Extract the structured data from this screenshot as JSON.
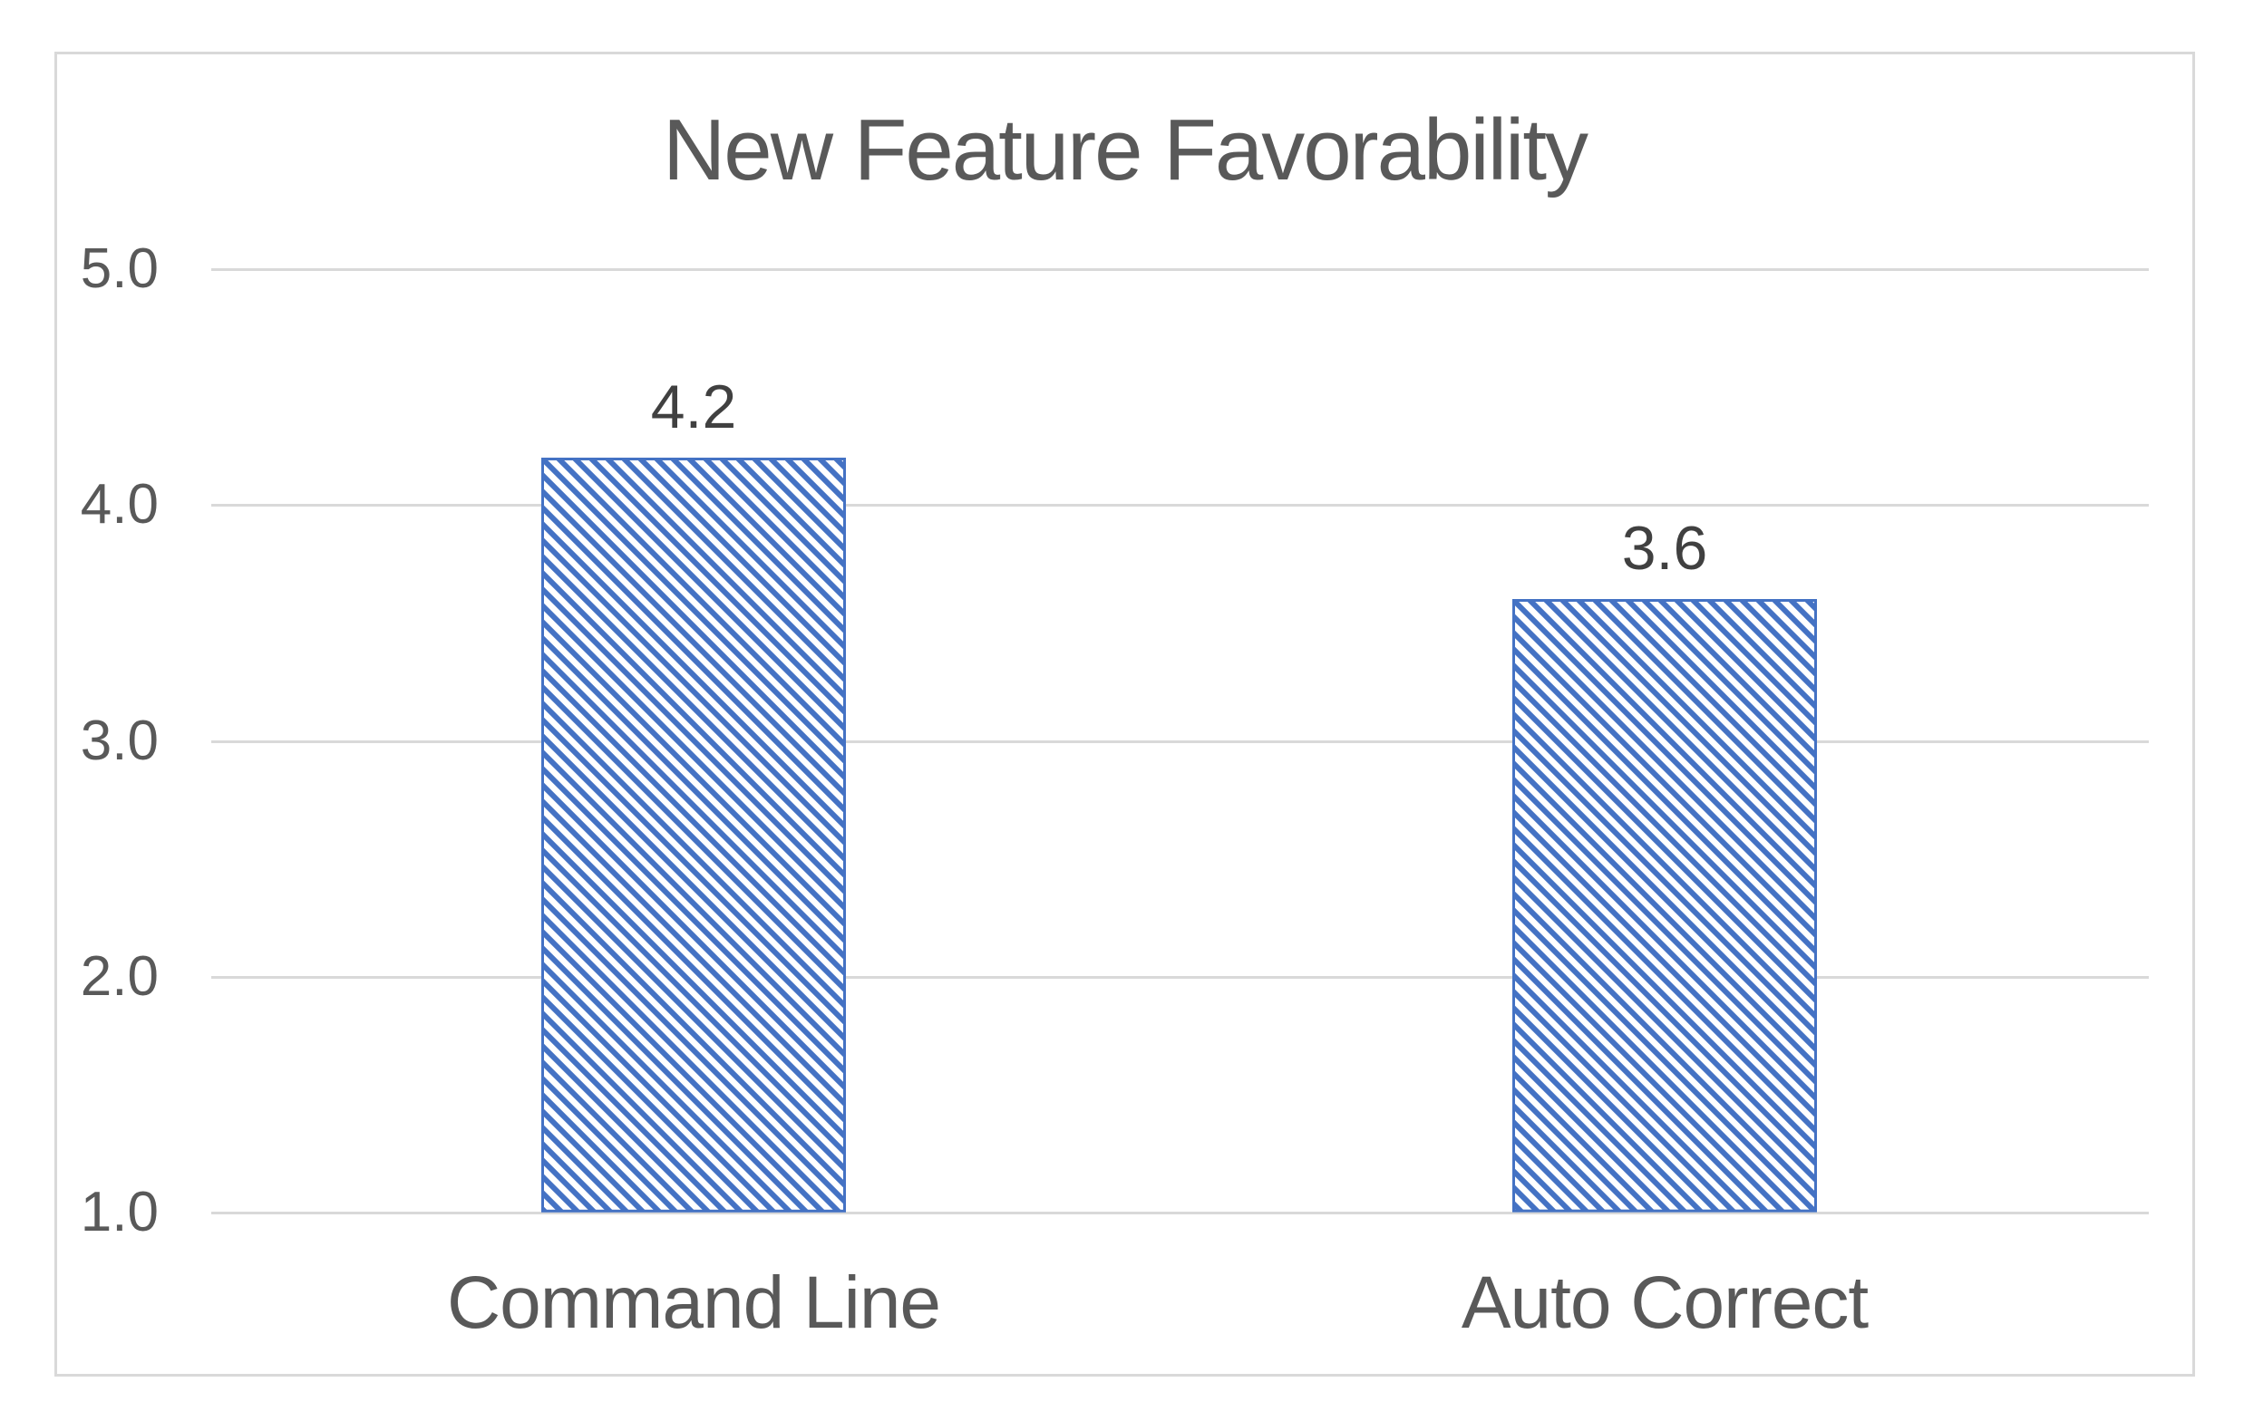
{
  "chart_data": {
    "type": "bar",
    "title": "New Feature Favorability",
    "categories": [
      "Command Line",
      "Auto Correct"
    ],
    "values": [
      4.2,
      3.6
    ],
    "data_labels": [
      "4.2",
      "3.6"
    ],
    "y_ticks": [
      "5.0",
      "4.0",
      "3.0",
      "2.0",
      "1.0"
    ],
    "ylim": [
      1.0,
      5.0
    ],
    "xlabel": "",
    "ylabel": "",
    "legend": "none",
    "grid": "horizontal",
    "bar_style": "diagonal-hatch-down",
    "colors": {
      "bar": "#4472C4",
      "bar_hatch_background": "#FFFFFF",
      "gridline": "#D9D9D9",
      "frame_border": "#D9D9D9",
      "title_text": "#595959",
      "axis_text": "#595959",
      "category_text": "#595959",
      "data_label_text": "#404040",
      "background": "#FFFFFF"
    }
  }
}
